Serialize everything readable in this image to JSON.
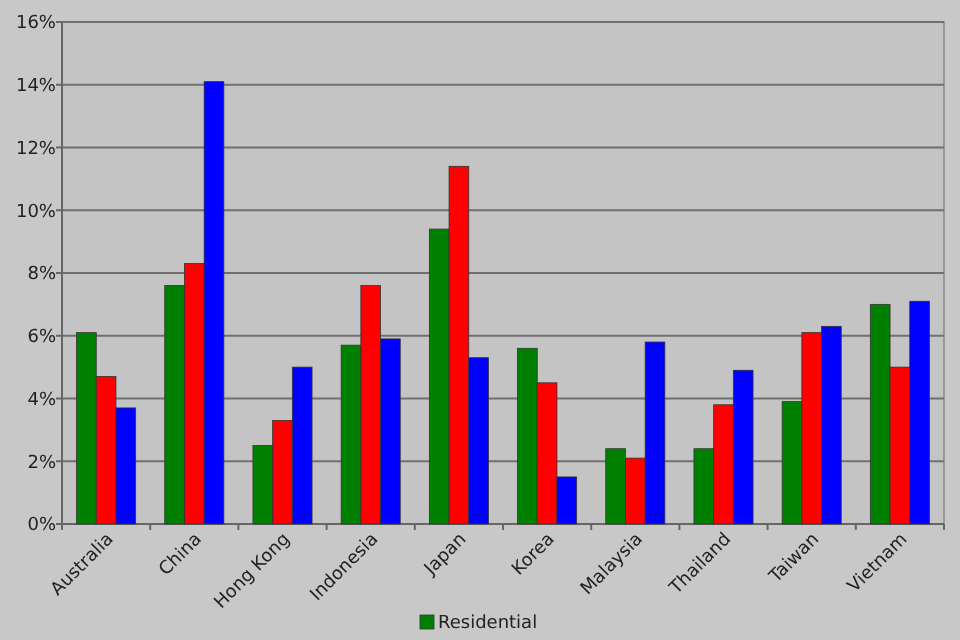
{
  "chart_data": {
    "type": "bar",
    "categories": [
      "Australia",
      "China",
      "Hong Kong",
      "Indonesia",
      "Japan",
      "Korea",
      "Malaysia",
      "Thailand",
      "Taiwan",
      "Vietnam"
    ],
    "series": [
      {
        "name": "Residential",
        "color": "#008000",
        "values": [
          6.1,
          7.6,
          2.5,
          5.7,
          9.4,
          5.6,
          2.4,
          2.4,
          3.9,
          7.0
        ]
      },
      {
        "color": "#ff0000",
        "values": [
          4.7,
          8.3,
          3.3,
          7.6,
          11.4,
          4.5,
          2.1,
          3.8,
          6.1,
          5.0
        ]
      },
      {
        "color": "#0000ff",
        "values": [
          3.7,
          14.1,
          5.0,
          5.9,
          5.3,
          1.5,
          5.8,
          4.9,
          6.3,
          7.1
        ]
      }
    ],
    "ylim": [
      0,
      16
    ],
    "yticks": [
      {
        "value": 0,
        "label": "0%"
      },
      {
        "value": 2,
        "label": "2%"
      },
      {
        "value": 4,
        "label": "4%"
      },
      {
        "value": 6,
        "label": "6%"
      },
      {
        "value": 8,
        "label": "8%"
      },
      {
        "value": 10,
        "label": "10%"
      },
      {
        "value": 12,
        "label": "12%"
      },
      {
        "value": 14,
        "label": "14%"
      },
      {
        "value": 16,
        "label": "16%"
      }
    ],
    "grid": "y",
    "legend": "bottom"
  }
}
